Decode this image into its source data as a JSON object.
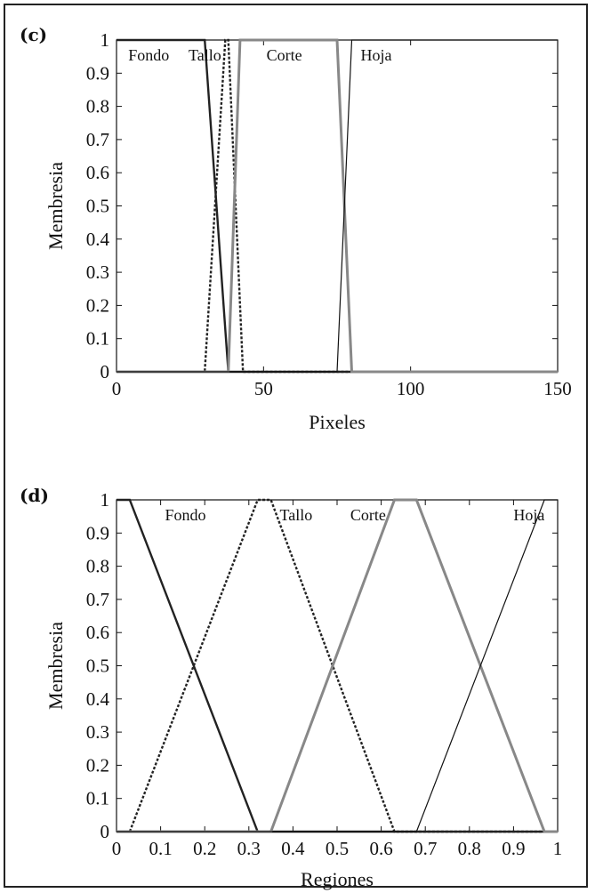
{
  "chart_data": [
    {
      "type": "line",
      "panel_label": "(c)",
      "xlabel": "Pixeles",
      "ylabel": "Membresia",
      "xlim": [
        0,
        150
      ],
      "ylim": [
        0,
        1
      ],
      "xticks": [
        "0",
        "50",
        "100",
        "150"
      ],
      "yticks": [
        "0",
        "0.1",
        "0.2",
        "0.3",
        "0.4",
        "0.5",
        "0.6",
        "0.7",
        "0.8",
        "0.9",
        "1"
      ],
      "grid": false,
      "series": [
        {
          "name": "Fondo",
          "style": "solid",
          "color": "#222222",
          "width": 2.4,
          "x": [
            0,
            30,
            38,
            150
          ],
          "y": [
            1,
            1,
            0,
            0
          ]
        },
        {
          "name": "Tallo",
          "style": "dotted",
          "color": "#222222",
          "width": 2.4,
          "x": [
            0,
            30,
            37,
            38,
            43,
            150
          ],
          "y": [
            0,
            0,
            1,
            1,
            0,
            0
          ]
        },
        {
          "name": "Corte",
          "style": "solid",
          "color": "#888888",
          "width": 3,
          "x": [
            0,
            38,
            42,
            75,
            80,
            150
          ],
          "y": [
            0,
            0,
            1,
            1,
            0,
            0
          ]
        },
        {
          "name": "Hoja",
          "style": "solid",
          "color": "#111111",
          "width": 1.2,
          "x": [
            0,
            75,
            80,
            150
          ],
          "y": [
            0,
            0,
            1,
            1
          ]
        }
      ],
      "annotations": [
        {
          "text": "Fondo",
          "x": 4,
          "y": 0.955
        },
        {
          "text": "Tallo",
          "x": 24.5,
          "y": 0.955
        },
        {
          "text": "Corte",
          "x": 51,
          "y": 0.955
        },
        {
          "text": "Hoja",
          "x": 83,
          "y": 0.955
        }
      ]
    },
    {
      "type": "line",
      "panel_label": "(d)",
      "xlabel": "Regiones",
      "ylabel": "Membresia",
      "xlim": [
        0,
        1
      ],
      "ylim": [
        0,
        1
      ],
      "xticks": [
        "0",
        "0.1",
        "0.2",
        "0.3",
        "0.4",
        "0.5",
        "0.6",
        "0.7",
        "0.8",
        "0.9",
        "1"
      ],
      "yticks": [
        "0",
        "0.1",
        "0.2",
        "0.3",
        "0.4",
        "0.5",
        "0.6",
        "0.7",
        "0.8",
        "0.9",
        "1"
      ],
      "grid": false,
      "series": [
        {
          "name": "Fondo",
          "style": "solid",
          "color": "#222222",
          "width": 2.4,
          "x": [
            0,
            0.03,
            0.32,
            1
          ],
          "y": [
            1,
            1,
            0,
            0
          ]
        },
        {
          "name": "Tallo",
          "style": "dotted",
          "color": "#222222",
          "width": 2.4,
          "x": [
            0,
            0.03,
            0.32,
            0.35,
            0.63,
            1
          ],
          "y": [
            0,
            0,
            1,
            1,
            0,
            0
          ]
        },
        {
          "name": "Corte",
          "style": "solid",
          "color": "#888888",
          "width": 3,
          "x": [
            0,
            0.35,
            0.63,
            0.68,
            0.97,
            1
          ],
          "y": [
            0,
            0,
            1,
            1,
            0,
            0
          ]
        },
        {
          "name": "Hoja",
          "style": "solid",
          "color": "#111111",
          "width": 1.2,
          "x": [
            0,
            0.68,
            0.97,
            1
          ],
          "y": [
            0,
            0,
            1,
            1
          ]
        }
      ],
      "annotations": [
        {
          "text": "Fondo",
          "x": 0.11,
          "y": 0.955
        },
        {
          "text": "Tallo",
          "x": 0.37,
          "y": 0.955
        },
        {
          "text": "Corte",
          "x": 0.53,
          "y": 0.955
        },
        {
          "text": "Hoja",
          "x": 0.9,
          "y": 0.955
        }
      ]
    }
  ]
}
